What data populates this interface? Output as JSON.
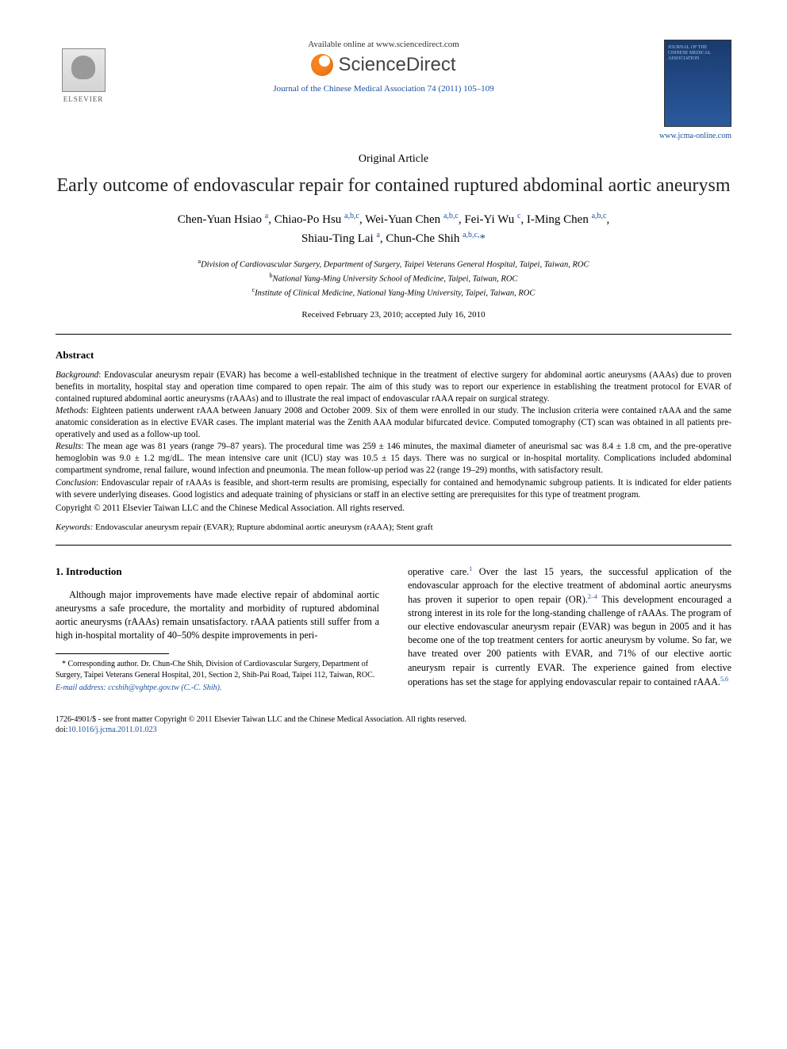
{
  "header": {
    "elsevier_label": "ELSEVIER",
    "available_online": "Available online at www.sciencedirect.com",
    "sciencedirect": "ScienceDirect",
    "journal_citation": "Journal of the Chinese Medical Association 74 (2011) 105–109",
    "journal_cover_lines": "JOURNAL OF THE CHINESE MEDICAL ASSOCIATION",
    "journal_url": "www.jcma-online.com"
  },
  "article": {
    "type": "Original Article",
    "title": "Early outcome of endovascular repair for contained ruptured abdominal aortic aneurysm",
    "authors_line1_html": "Chen-Yuan Hsiao <sup>a</sup>, Chiao-Po Hsu <sup>a,b,c</sup>, Wei-Yuan Chen <sup>a,b,c</sup>, Fei-Yi Wu <sup>c</sup>, I-Ming Chen <sup>a,b,c</sup>,",
    "authors_line2_html": "Shiau-Ting Lai <sup>a</sup>, Chun-Che Shih <sup>a,b,c,</sup><span class='corr'>*</span>",
    "affiliations": {
      "a": "Division of Cardiovascular Surgery, Department of Surgery, Taipei Veterans General Hospital, Taipei, Taiwan, ROC",
      "b": "National Yang-Ming University School of Medicine, Taipei, Taiwan, ROC",
      "c": "Institute of Clinical Medicine, National Yang-Ming University, Taipei, Taiwan, ROC"
    },
    "dates": "Received February 23, 2010; accepted July 16, 2010"
  },
  "abstract": {
    "heading": "Abstract",
    "background_label": "Background",
    "background": ": Endovascular aneurysm repair (EVAR) has become a well-established technique in the treatment of elective surgery for abdominal aortic aneurysms (AAAs) due to proven benefits in mortality, hospital stay and operation time compared to open repair. The aim of this study was to report our experience in establishing the treatment protocol for EVAR of contained ruptured abdominal aortic aneurysms (rAAAs) and to illustrate the real impact of endovascular rAAA repair on surgical strategy.",
    "methods_label": "Methods",
    "methods": ": Eighteen patients underwent rAAA between January 2008 and October 2009. Six of them were enrolled in our study. The inclusion criteria were contained rAAA and the same anatomic consideration as in elective EVAR cases. The implant material was the Zenith AAA modular bifurcated device. Computed tomography (CT) scan was obtained in all patients pre-operatively and used as a follow-up tool.",
    "results_label": "Results",
    "results": ": The mean age was 81 years (range 79–87 years). The procedural time was 259 ± 146 minutes, the maximal diameter of aneurismal sac was 8.4 ± 1.8 cm, and the pre-operative hemoglobin was 9.0 ± 1.2 mg/dL. The mean intensive care unit (ICU) stay was 10.5 ± 15 days. There was no surgical or in-hospital mortality. Complications included abdominal compartment syndrome, renal failure, wound infection and pneumonia. The mean follow-up period was 22 (range 19–29) months, with satisfactory result.",
    "conclusion_label": "Conclusion",
    "conclusion": ": Endovascular repair of rAAAs is feasible, and short-term results are promising, especially for contained and hemodynamic subgroup patients. It is indicated for elder patients with severe underlying diseases. Good logistics and adequate training of physicians or staff in an elective setting are prerequisites for this type of treatment program.",
    "copyright": "Copyright © 2011 Elsevier Taiwan LLC and the Chinese Medical Association. All rights reserved.",
    "keywords_label": "Keywords:",
    "keywords": " Endovascular aneurysm repair (EVAR); Rupture abdominal aortic aneurysm (rAAA); Stent graft"
  },
  "body": {
    "intro_heading": "1. Introduction",
    "left_para": "Although major improvements have made elective repair of abdominal aortic aneurysms a safe procedure, the mortality and morbidity of ruptured abdominal aortic aneurysms (rAAAs) remain unsatisfactory. rAAA patients still suffer from a high in-hospital mortality of 40–50% despite improvements in peri-",
    "right_para_html": "operative care.<sup>1</sup> Over the last 15 years, the successful application of the endovascular approach for the elective treatment of abdominal aortic aneurysms has proven it superior to open repair (OR).<sup>2–4</sup> This development encouraged a strong interest in its role for the long-standing challenge of rAAAs. The program of our elective endovascular aneurysm repair (EVAR) was begun in 2005 and it has become one of the top treatment centers for aortic aneurysm by volume. So far, we have treated over 200 patients with EVAR, and 71% of our elective aortic aneurysm repair is currently EVAR. The experience gained from elective operations has set the stage for applying endovascular repair to contained rAAA.<sup>5,6</sup>"
  },
  "footnote": {
    "corresponding": "* Corresponding author. Dr. Chun-Che Shih, Division of Cardiovascular Surgery, Department of Surgery, Taipei Veterans General Hospital, 201, Section 2, Shih-Pai Road, Taipei 112, Taiwan, ROC.",
    "email_label": "E-mail address:",
    "email": " ccshih@vghtpe.gov.tw",
    "email_suffix": " (C.-C. Shih)."
  },
  "footer": {
    "line1": "1726-4901/$ - see front matter Copyright © 2011 Elsevier Taiwan LLC and the Chinese Medical Association. All rights reserved.",
    "doi_label": "doi:",
    "doi": "10.1016/j.jcma.2011.01.023"
  },
  "colors": {
    "link_blue": "#1a4f9c",
    "text": "#000000",
    "sd_orange": "#f58220",
    "cover_bg_top": "#1a3a6e",
    "cover_bg_bottom": "#2a5a9e"
  },
  "typography": {
    "title_fontsize_pt": 18,
    "body_fontsize_pt": 9,
    "abstract_fontsize_pt": 8.5,
    "font_family": "Times/Georgia serif"
  }
}
